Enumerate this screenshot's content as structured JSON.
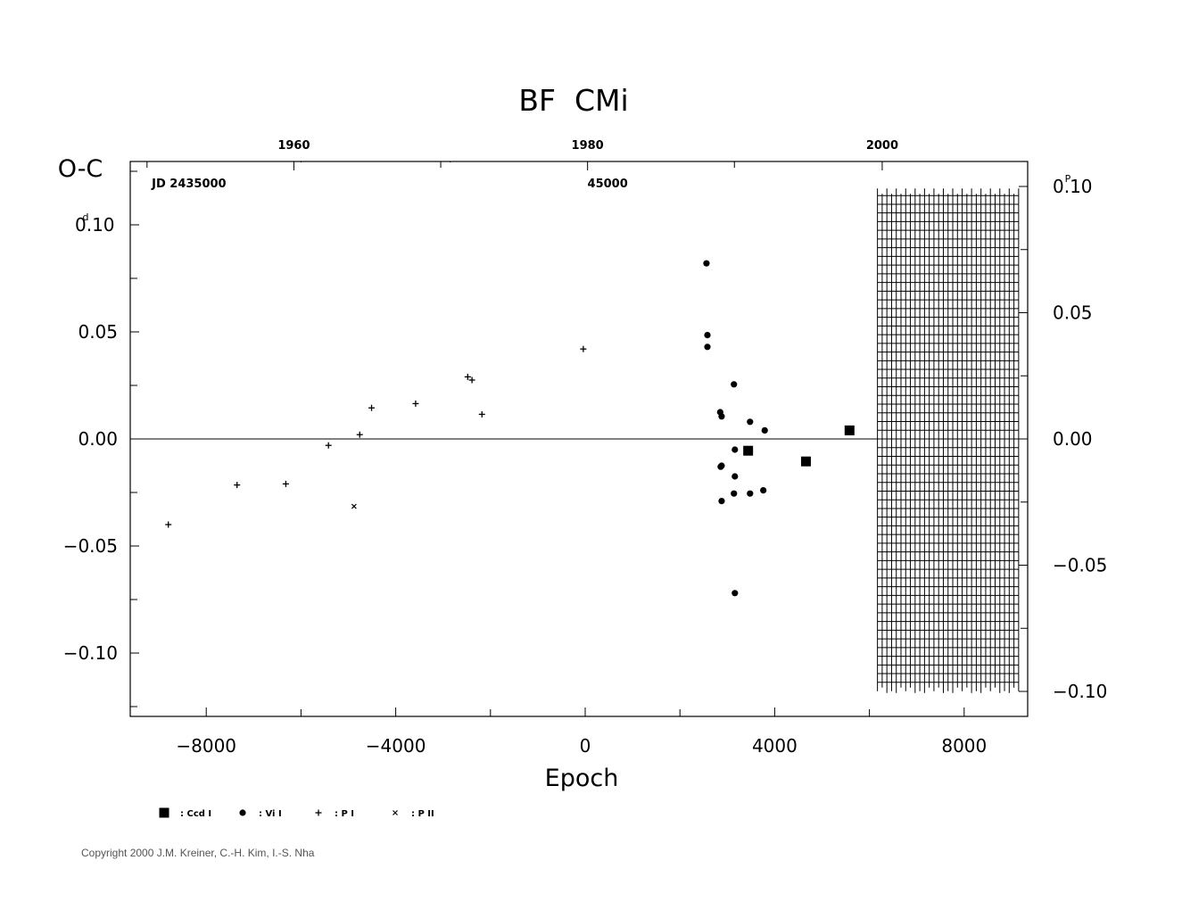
{
  "chart_data": {
    "type": "scatter",
    "title": "BF  CMi",
    "xlabel": "Epoch",
    "ylabel": "O-C",
    "ylabel_unit_left": "d",
    "ylabel_unit_right": "P",
    "xlim": [
      -9650,
      9300
    ],
    "ylim": [
      -0.13,
      0.13
    ],
    "right_ylim_phase": [
      -0.118,
      0.113
    ],
    "x_ticks": [
      -8000,
      -4000,
      0,
      4000,
      8000
    ],
    "x_tick_labels": [
      "−8000",
      "−4000",
      "0",
      "4000",
      "8000"
    ],
    "y_ticks": [
      0.1,
      0.05,
      0.0,
      -0.05,
      -0.1
    ],
    "y_tick_labels": [
      "0.10",
      "0.05",
      "0.00",
      "−0.05",
      "−0.10"
    ],
    "right_y_ticks": [
      0.1,
      0.05,
      0.0,
      -0.05,
      -0.1
    ],
    "right_y_tick_labels": [
      "0.10",
      "0.05",
      "0.00",
      "−0.05",
      "−0.10"
    ],
    "top_year_ticks": [
      {
        "epoch": -6150,
        "label": "1960"
      },
      {
        "epoch": 50,
        "label": "1980"
      },
      {
        "epoch": 6270,
        "label": "2000"
      }
    ],
    "top_year_minor": [
      -9250,
      -3050,
      3150,
      9350
    ],
    "top_jd_labels": [
      {
        "epoch": -9150,
        "label": "JD  2435000"
      },
      {
        "epoch": 700,
        "label": "45000"
      }
    ],
    "top_jd_minor": [
      -6000,
      -2850,
      3150
    ],
    "zero_line": 0.0,
    "hatched_region": {
      "x": [
        6170,
        9150
      ],
      "y": [
        -0.117,
        0.117
      ]
    },
    "series": [
      {
        "name": ": Ccd  I",
        "marker": "square",
        "points": [
          {
            "x": 3440,
            "y": -0.0055
          },
          {
            "x": 4660,
            "y": -0.0105
          },
          {
            "x": 5580,
            "y": 0.004
          }
        ]
      },
      {
        "name": ": Vi  I",
        "marker": "circle",
        "points": [
          {
            "x": 2560,
            "y": 0.082
          },
          {
            "x": 2580,
            "y": 0.0485
          },
          {
            "x": 2580,
            "y": 0.043
          },
          {
            "x": 3140,
            "y": 0.0255
          },
          {
            "x": 2850,
            "y": 0.0125
          },
          {
            "x": 2880,
            "y": 0.0105
          },
          {
            "x": 3480,
            "y": 0.008
          },
          {
            "x": 3790,
            "y": 0.004
          },
          {
            "x": 3160,
            "y": -0.005
          },
          {
            "x": 2880,
            "y": -0.0125
          },
          {
            "x": 2860,
            "y": -0.013
          },
          {
            "x": 3160,
            "y": -0.0175
          },
          {
            "x": 3140,
            "y": -0.0255
          },
          {
            "x": 3480,
            "y": -0.0255
          },
          {
            "x": 3760,
            "y": -0.024
          },
          {
            "x": 2880,
            "y": -0.029
          },
          {
            "x": 3160,
            "y": -0.072
          }
        ]
      },
      {
        "name": ": P  I",
        "marker": "plus",
        "points": [
          {
            "x": -8800,
            "y": -0.04
          },
          {
            "x": -7350,
            "y": -0.0215
          },
          {
            "x": -6320,
            "y": -0.021
          },
          {
            "x": -5420,
            "y": -0.003
          },
          {
            "x": -4760,
            "y": 0.002
          },
          {
            "x": -4510,
            "y": 0.0145
          },
          {
            "x": -3580,
            "y": 0.0165
          },
          {
            "x": -2480,
            "y": 0.029
          },
          {
            "x": -2390,
            "y": 0.0275
          },
          {
            "x": -2180,
            "y": 0.0115
          },
          {
            "x": -40,
            "y": 0.042
          }
        ]
      },
      {
        "name": ": P  II",
        "marker": "x",
        "points": [
          {
            "x": -4880,
            "y": -0.0315
          }
        ]
      }
    ]
  },
  "copyright": "Copyright 2000 J.M. Kreiner, C.-H. Kim, I.-S. Nha"
}
